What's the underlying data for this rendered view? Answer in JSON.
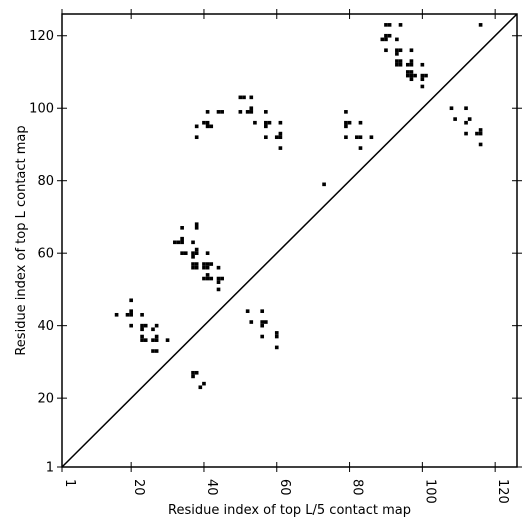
{
  "chart_data": {
    "type": "scatter",
    "title": "",
    "xlabel": "Residue index of top L/5 contact map",
    "ylabel": "Residue index of top L contact map",
    "xlim": [
      1,
      126
    ],
    "ylim": [
      1,
      126
    ],
    "xticks": [
      1,
      20,
      40,
      60,
      80,
      100,
      120
    ],
    "yticks": [
      1,
      20,
      40,
      60,
      80,
      100,
      120
    ],
    "x_tick_rotation": 90,
    "grid": false,
    "legend": "none",
    "marker": "square",
    "marker_color": "#000000",
    "reference_line": {
      "type": "diagonal",
      "from": [
        1,
        1
      ],
      "to": [
        126,
        126
      ]
    },
    "points": [
      [
        16,
        43
      ],
      [
        19,
        43
      ],
      [
        20,
        43
      ],
      [
        20,
        44
      ],
      [
        20,
        47
      ],
      [
        20,
        40
      ],
      [
        23,
        43
      ],
      [
        23,
        40
      ],
      [
        23,
        39
      ],
      [
        24,
        40
      ],
      [
        23,
        37
      ],
      [
        23,
        36
      ],
      [
        24,
        36
      ],
      [
        26,
        39
      ],
      [
        27,
        40
      ],
      [
        26,
        36
      ],
      [
        27,
        36
      ],
      [
        27,
        37
      ],
      [
        26,
        33
      ],
      [
        27,
        33
      ],
      [
        30,
        36
      ],
      [
        32,
        63
      ],
      [
        33,
        63
      ],
      [
        34,
        63
      ],
      [
        34,
        64
      ],
      [
        34,
        67
      ],
      [
        34,
        60
      ],
      [
        35,
        60
      ],
      [
        37,
        63
      ],
      [
        37,
        60
      ],
      [
        37,
        59
      ],
      [
        38,
        61
      ],
      [
        38,
        60
      ],
      [
        38,
        67
      ],
      [
        38,
        68
      ],
      [
        37,
        57
      ],
      [
        37,
        56
      ],
      [
        38,
        57
      ],
      [
        38,
        56
      ],
      [
        40,
        57
      ],
      [
        40,
        56
      ],
      [
        41,
        56
      ],
      [
        41,
        60
      ],
      [
        41,
        57
      ],
      [
        42,
        57
      ],
      [
        40,
        53
      ],
      [
        41,
        53
      ],
      [
        41,
        54
      ],
      [
        42,
        53
      ],
      [
        44,
        56
      ],
      [
        44,
        53
      ],
      [
        45,
        53
      ],
      [
        44,
        52
      ],
      [
        44,
        50
      ],
      [
        37,
        27
      ],
      [
        37,
        26
      ],
      [
        38,
        27
      ],
      [
        39,
        23
      ],
      [
        40,
        24
      ],
      [
        38,
        95
      ],
      [
        38,
        92
      ],
      [
        40,
        96
      ],
      [
        41,
        96
      ],
      [
        41,
        99
      ],
      [
        41,
        95
      ],
      [
        42,
        95
      ],
      [
        44,
        99
      ],
      [
        45,
        99
      ],
      [
        50,
        103
      ],
      [
        51,
        103
      ],
      [
        50,
        99
      ],
      [
        53,
        103
      ],
      [
        53,
        100
      ],
      [
        53,
        99
      ],
      [
        52,
        99
      ],
      [
        54,
        96
      ],
      [
        57,
        99
      ],
      [
        57,
        96
      ],
      [
        58,
        96
      ],
      [
        57,
        95
      ],
      [
        57,
        92
      ],
      [
        60,
        92
      ],
      [
        61,
        93
      ],
      [
        61,
        92
      ],
      [
        61,
        96
      ],
      [
        61,
        89
      ],
      [
        52,
        44
      ],
      [
        53,
        41
      ],
      [
        56,
        44
      ],
      [
        56,
        41
      ],
      [
        57,
        41
      ],
      [
        56,
        40
      ],
      [
        56,
        37
      ],
      [
        60,
        38
      ],
      [
        60,
        37
      ],
      [
        60,
        34
      ],
      [
        73,
        79
      ],
      [
        79,
        99
      ],
      [
        79,
        96
      ],
      [
        79,
        95
      ],
      [
        80,
        96
      ],
      [
        79,
        92
      ],
      [
        82,
        92
      ],
      [
        83,
        92
      ],
      [
        83,
        96
      ],
      [
        83,
        89
      ],
      [
        86,
        92
      ],
      [
        89,
        119
      ],
      [
        90,
        119
      ],
      [
        90,
        120
      ],
      [
        91,
        120
      ],
      [
        90,
        123
      ],
      [
        91,
        123
      ],
      [
        90,
        116
      ],
      [
        93,
        119
      ],
      [
        93,
        116
      ],
      [
        94,
        116
      ],
      [
        93,
        115
      ],
      [
        94,
        123
      ],
      [
        93,
        113
      ],
      [
        94,
        113
      ],
      [
        93,
        112
      ],
      [
        94,
        112
      ],
      [
        96,
        112
      ],
      [
        97,
        112
      ],
      [
        97,
        113
      ],
      [
        97,
        116
      ],
      [
        96,
        110
      ],
      [
        97,
        110
      ],
      [
        96,
        109
      ],
      [
        97,
        109
      ],
      [
        98,
        109
      ],
      [
        97,
        108
      ],
      [
        100,
        112
      ],
      [
        100,
        109
      ],
      [
        101,
        109
      ],
      [
        100,
        108
      ],
      [
        100,
        106
      ],
      [
        108,
        100
      ],
      [
        109,
        97
      ],
      [
        112,
        100
      ],
      [
        112,
        96
      ],
      [
        113,
        97
      ],
      [
        112,
        93
      ],
      [
        115,
        93
      ],
      [
        116,
        93
      ],
      [
        116,
        94
      ],
      [
        116,
        90
      ],
      [
        116,
        123
      ]
    ]
  }
}
